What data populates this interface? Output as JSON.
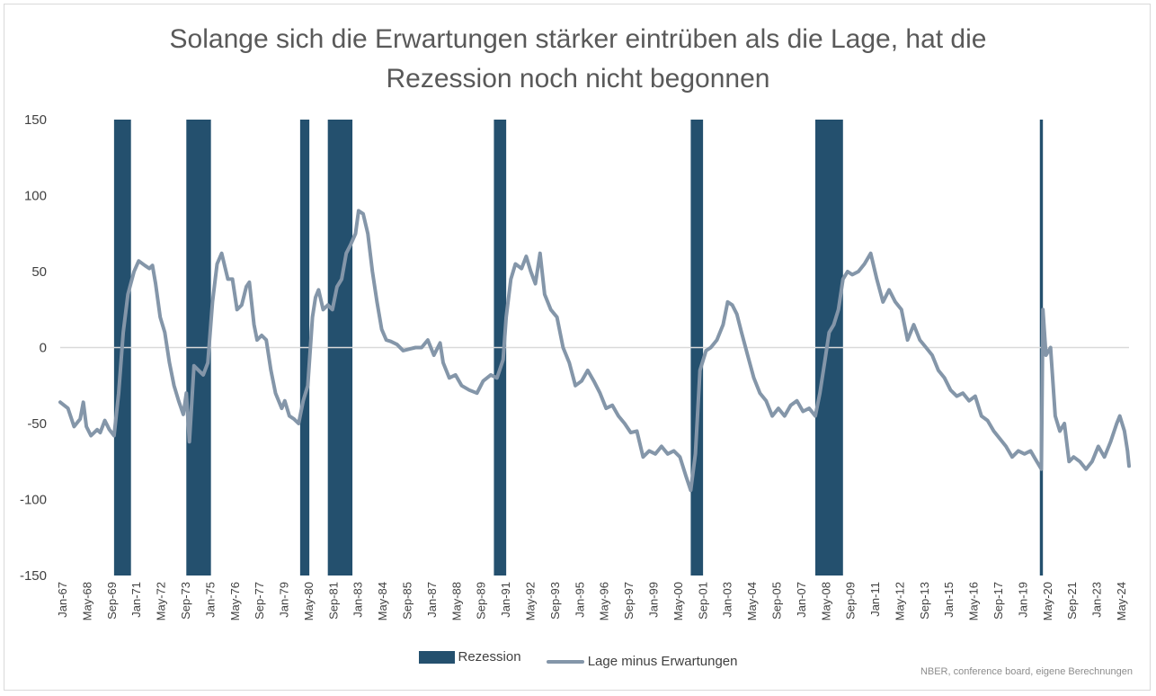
{
  "chart_data": {
    "type": "line",
    "title_line1": "Solange sich die Erwartungen stärker eintrüben als die Lage, hat die",
    "title_line2": "Rezession noch nicht begonnen",
    "ylim": [
      -150,
      150
    ],
    "y_ticks": [
      150,
      100,
      50,
      0,
      -50,
      -100,
      -150
    ],
    "xlim": [
      "1967-01",
      "2024-12"
    ],
    "x_tick_labels": [
      "Jan-67",
      "May-68",
      "Sep-69",
      "Jan-71",
      "May-72",
      "Sep-73",
      "Jan-75",
      "May-76",
      "Sep-77",
      "Jan-79",
      "May-80",
      "Sep-81",
      "Jan-83",
      "May-84",
      "Sep-85",
      "Jan-87",
      "May-88",
      "Sep-89",
      "Jan-91",
      "May-92",
      "Sep-93",
      "Jan-95",
      "May-96",
      "Sep-97",
      "Jan-99",
      "May-00",
      "Sep-01",
      "Jan-03",
      "May-04",
      "Sep-05",
      "Jan-07",
      "May-08",
      "Sep-09",
      "Jan-11",
      "May-12",
      "Sep-13",
      "Jan-15",
      "May-16",
      "Sep-17",
      "Jan-19",
      "May-20",
      "Sep-21",
      "Jan-23",
      "May-24"
    ],
    "recessions": [
      [
        "1969-12",
        "1970-11"
      ],
      [
        "1973-11",
        "1975-03"
      ],
      [
        "1980-01",
        "1980-07"
      ],
      [
        "1981-07",
        "1982-11"
      ],
      [
        "1990-07",
        "1991-03"
      ],
      [
        "2001-03",
        "2001-11"
      ],
      [
        "2007-12",
        "2009-06"
      ],
      [
        "2020-02",
        "2020-04"
      ]
    ],
    "series": [
      {
        "name": "Rezession",
        "type": "bar",
        "color": "#24506e"
      },
      {
        "name": "Lage minus Erwartungen",
        "type": "line",
        "color": "#8496a9",
        "points": [
          [
            "1967-01",
            -36
          ],
          [
            "1967-06",
            -40
          ],
          [
            "1967-10",
            -52
          ],
          [
            "1968-02",
            -47
          ],
          [
            "1968-04",
            -36
          ],
          [
            "1968-06",
            -52
          ],
          [
            "1968-09",
            -58
          ],
          [
            "1969-01",
            -54
          ],
          [
            "1969-03",
            -56
          ],
          [
            "1969-06",
            -48
          ],
          [
            "1969-09",
            -54
          ],
          [
            "1969-12",
            -58
          ],
          [
            "1970-03",
            -30
          ],
          [
            "1970-06",
            10
          ],
          [
            "1970-09",
            35
          ],
          [
            "1971-01",
            50
          ],
          [
            "1971-04",
            57
          ],
          [
            "1971-08",
            54
          ],
          [
            "1971-11",
            52
          ],
          [
            "1972-01",
            54
          ],
          [
            "1972-03",
            42
          ],
          [
            "1972-06",
            20
          ],
          [
            "1972-09",
            10
          ],
          [
            "1972-12",
            -10
          ],
          [
            "1973-03",
            -25
          ],
          [
            "1973-06",
            -35
          ],
          [
            "1973-09",
            -44
          ],
          [
            "1973-11",
            -30
          ],
          [
            "1974-01",
            -62
          ],
          [
            "1974-04",
            -12
          ],
          [
            "1974-07",
            -15
          ],
          [
            "1974-10",
            -18
          ],
          [
            "1975-01",
            -10
          ],
          [
            "1975-04",
            30
          ],
          [
            "1975-07",
            55
          ],
          [
            "1975-10",
            62
          ],
          [
            "1976-02",
            45
          ],
          [
            "1976-05",
            45
          ],
          [
            "1976-08",
            25
          ],
          [
            "1976-11",
            28
          ],
          [
            "1977-02",
            40
          ],
          [
            "1977-04",
            43
          ],
          [
            "1977-07",
            15
          ],
          [
            "1977-09",
            5
          ],
          [
            "1977-12",
            8
          ],
          [
            "1978-03",
            5
          ],
          [
            "1978-06",
            -15
          ],
          [
            "1978-09",
            -30
          ],
          [
            "1979-01",
            -40
          ],
          [
            "1979-03",
            -35
          ],
          [
            "1979-06",
            -45
          ],
          [
            "1979-09",
            -47
          ],
          [
            "1979-12",
            -50
          ],
          [
            "1980-03",
            -35
          ],
          [
            "1980-06",
            -25
          ],
          [
            "1980-09",
            20
          ],
          [
            "1980-11",
            33
          ],
          [
            "1981-01",
            38
          ],
          [
            "1981-04",
            25
          ],
          [
            "1981-07",
            28
          ],
          [
            "1981-10",
            25
          ],
          [
            "1982-01",
            40
          ],
          [
            "1982-04",
            45
          ],
          [
            "1982-07",
            62
          ],
          [
            "1982-10",
            68
          ],
          [
            "1983-01",
            75
          ],
          [
            "1983-03",
            90
          ],
          [
            "1983-06",
            88
          ],
          [
            "1983-09",
            75
          ],
          [
            "1983-12",
            50
          ],
          [
            "1984-03",
            30
          ],
          [
            "1984-06",
            12
          ],
          [
            "1984-09",
            5
          ],
          [
            "1984-12",
            4
          ],
          [
            "1985-04",
            2
          ],
          [
            "1985-08",
            -2
          ],
          [
            "1985-12",
            -1
          ],
          [
            "1986-04",
            0
          ],
          [
            "1986-08",
            0
          ],
          [
            "1986-12",
            5
          ],
          [
            "1987-04",
            -5
          ],
          [
            "1987-08",
            3
          ],
          [
            "1987-10",
            -10
          ],
          [
            "1988-02",
            -20
          ],
          [
            "1988-06",
            -18
          ],
          [
            "1988-10",
            -25
          ],
          [
            "1989-03",
            -28
          ],
          [
            "1989-08",
            -30
          ],
          [
            "1989-12",
            -22
          ],
          [
            "1990-05",
            -18
          ],
          [
            "1990-09",
            -20
          ],
          [
            "1991-01",
            -8
          ],
          [
            "1991-03",
            20
          ],
          [
            "1991-06",
            45
          ],
          [
            "1991-09",
            55
          ],
          [
            "1992-01",
            52
          ],
          [
            "1992-04",
            60
          ],
          [
            "1992-07",
            50
          ],
          [
            "1992-10",
            42
          ],
          [
            "1993-01",
            62
          ],
          [
            "1993-04",
            35
          ],
          [
            "1993-08",
            25
          ],
          [
            "1993-12",
            20
          ],
          [
            "1994-04",
            0
          ],
          [
            "1994-08",
            -10
          ],
          [
            "1994-12",
            -25
          ],
          [
            "1995-04",
            -22
          ],
          [
            "1995-08",
            -15
          ],
          [
            "1995-12",
            -22
          ],
          [
            "1996-04",
            -30
          ],
          [
            "1996-08",
            -40
          ],
          [
            "1996-12",
            -38
          ],
          [
            "1997-04",
            -45
          ],
          [
            "1997-08",
            -50
          ],
          [
            "1997-12",
            -56
          ],
          [
            "1998-04",
            -55
          ],
          [
            "1998-08",
            -72
          ],
          [
            "1998-12",
            -68
          ],
          [
            "1999-04",
            -70
          ],
          [
            "1999-08",
            -65
          ],
          [
            "1999-12",
            -70
          ],
          [
            "2000-04",
            -68
          ],
          [
            "2000-08",
            -72
          ],
          [
            "2000-12",
            -85
          ],
          [
            "2001-03",
            -94
          ],
          [
            "2001-06",
            -70
          ],
          [
            "2001-09",
            -15
          ],
          [
            "2002-01",
            -2
          ],
          [
            "2002-04",
            0
          ],
          [
            "2002-08",
            5
          ],
          [
            "2002-12",
            15
          ],
          [
            "2003-03",
            30
          ],
          [
            "2003-06",
            28
          ],
          [
            "2003-09",
            22
          ],
          [
            "2003-12",
            10
          ],
          [
            "2004-04",
            -5
          ],
          [
            "2004-08",
            -20
          ],
          [
            "2004-12",
            -30
          ],
          [
            "2005-04",
            -35
          ],
          [
            "2005-08",
            -45
          ],
          [
            "2005-12",
            -40
          ],
          [
            "2006-04",
            -45
          ],
          [
            "2006-08",
            -38
          ],
          [
            "2006-12",
            -35
          ],
          [
            "2007-04",
            -42
          ],
          [
            "2007-08",
            -40
          ],
          [
            "2007-12",
            -45
          ],
          [
            "2008-03",
            -30
          ],
          [
            "2008-06",
            -10
          ],
          [
            "2008-09",
            10
          ],
          [
            "2008-12",
            15
          ],
          [
            "2009-03",
            25
          ],
          [
            "2009-06",
            45
          ],
          [
            "2009-09",
            50
          ],
          [
            "2009-12",
            48
          ],
          [
            "2010-04",
            50
          ],
          [
            "2010-08",
            55
          ],
          [
            "2010-12",
            62
          ],
          [
            "2011-04",
            45
          ],
          [
            "2011-08",
            30
          ],
          [
            "2011-12",
            38
          ],
          [
            "2012-04",
            30
          ],
          [
            "2012-08",
            25
          ],
          [
            "2012-12",
            5
          ],
          [
            "2013-04",
            15
          ],
          [
            "2013-08",
            5
          ],
          [
            "2013-12",
            0
          ],
          [
            "2014-04",
            -5
          ],
          [
            "2014-08",
            -15
          ],
          [
            "2014-12",
            -20
          ],
          [
            "2015-04",
            -28
          ],
          [
            "2015-08",
            -32
          ],
          [
            "2015-12",
            -30
          ],
          [
            "2016-04",
            -35
          ],
          [
            "2016-08",
            -32
          ],
          [
            "2016-12",
            -45
          ],
          [
            "2017-04",
            -48
          ],
          [
            "2017-08",
            -55
          ],
          [
            "2017-12",
            -60
          ],
          [
            "2018-04",
            -65
          ],
          [
            "2018-08",
            -72
          ],
          [
            "2018-12",
            -68
          ],
          [
            "2019-04",
            -70
          ],
          [
            "2019-08",
            -68
          ],
          [
            "2019-12",
            -75
          ],
          [
            "2020-03",
            -80
          ],
          [
            "2020-04",
            25
          ],
          [
            "2020-06",
            -5
          ],
          [
            "2020-09",
            0
          ],
          [
            "2020-12",
            -45
          ],
          [
            "2021-03",
            -55
          ],
          [
            "2021-06",
            -50
          ],
          [
            "2021-09",
            -75
          ],
          [
            "2021-12",
            -72
          ],
          [
            "2022-04",
            -75
          ],
          [
            "2022-08",
            -80
          ],
          [
            "2022-12",
            -75
          ],
          [
            "2023-04",
            -65
          ],
          [
            "2023-08",
            -72
          ],
          [
            "2023-12",
            -62
          ],
          [
            "2024-04",
            -50
          ],
          [
            "2024-06",
            -45
          ],
          [
            "2024-09",
            -55
          ],
          [
            "2024-11",
            -68
          ],
          [
            "2024-12",
            -78
          ]
        ]
      }
    ]
  },
  "legend": {
    "recession_label": "Rezession",
    "line_label": "Lage minus Erwartungen"
  },
  "source": "NBER, conference board, eigene Berechnungen"
}
